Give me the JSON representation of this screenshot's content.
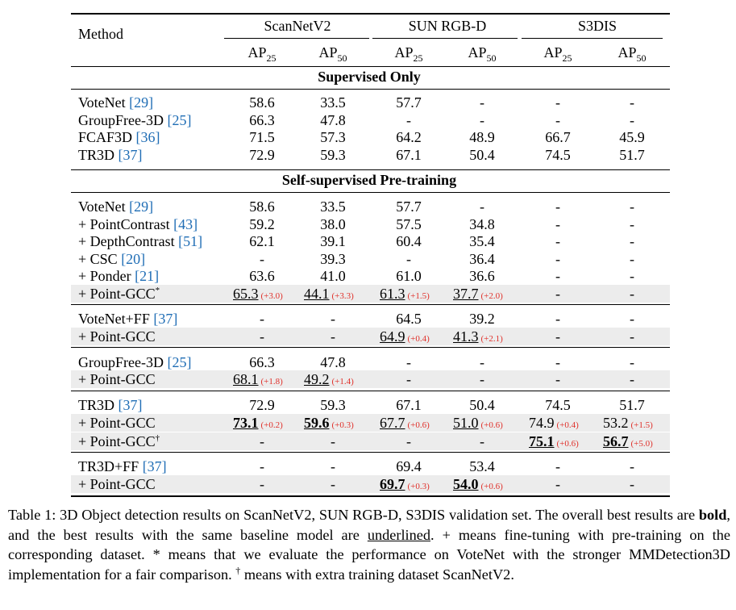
{
  "header": {
    "method": "Method",
    "datasets": [
      "ScanNetV2",
      "SUN RGB-D",
      "S3DIS"
    ],
    "metric_base": "AP",
    "metric_subs": [
      "25",
      "50",
      "25",
      "50",
      "25",
      "50"
    ]
  },
  "sections": [
    {
      "title": "Supervised Only"
    },
    {
      "title": "Self-supervised Pre-training"
    }
  ],
  "rows": [
    {
      "pre": "VoteNet ",
      "ref": "[29]",
      "cells": [
        {
          "v": "58.6"
        },
        {
          "v": "33.5"
        },
        {
          "v": "57.7"
        },
        {
          "v": "-"
        },
        {
          "v": "-"
        },
        {
          "v": "-"
        }
      ]
    },
    {
      "pre": "GroupFree-3D ",
      "ref": "[25]",
      "cells": [
        {
          "v": "66.3"
        },
        {
          "v": "47.8"
        },
        {
          "v": "-"
        },
        {
          "v": "-"
        },
        {
          "v": "-"
        },
        {
          "v": "-"
        }
      ]
    },
    {
      "pre": "FCAF3D ",
      "ref": "[36]",
      "cells": [
        {
          "v": "71.5"
        },
        {
          "v": "57.3"
        },
        {
          "v": "64.2"
        },
        {
          "v": "48.9"
        },
        {
          "v": "66.7"
        },
        {
          "v": "45.9"
        }
      ]
    },
    {
      "pre": "TR3D ",
      "ref": "[37]",
      "cells": [
        {
          "v": "72.9"
        },
        {
          "v": "59.3"
        },
        {
          "v": "67.1"
        },
        {
          "v": "50.4"
        },
        {
          "v": "74.5"
        },
        {
          "v": "51.7"
        }
      ]
    },
    {
      "pre": "VoteNet ",
      "ref": "[29]",
      "cells": [
        {
          "v": "58.6"
        },
        {
          "v": "33.5"
        },
        {
          "v": "57.7"
        },
        {
          "v": "-"
        },
        {
          "v": "-"
        },
        {
          "v": "-"
        }
      ]
    },
    {
      "pre": "+ PointContrast ",
      "ref": "[43]",
      "cells": [
        {
          "v": "59.2"
        },
        {
          "v": "38.0"
        },
        {
          "v": "57.5"
        },
        {
          "v": "34.8"
        },
        {
          "v": "-"
        },
        {
          "v": "-"
        }
      ]
    },
    {
      "pre": "+ DepthContrast ",
      "ref": "[51]",
      "cells": [
        {
          "v": "62.1"
        },
        {
          "v": "39.1"
        },
        {
          "v": "60.4"
        },
        {
          "v": "35.4"
        },
        {
          "v": "-"
        },
        {
          "v": "-"
        }
      ]
    },
    {
      "pre": "+ CSC ",
      "ref": "[20]",
      "cells": [
        {
          "v": "-"
        },
        {
          "v": "39.3"
        },
        {
          "v": "-"
        },
        {
          "v": "36.4"
        },
        {
          "v": "-"
        },
        {
          "v": "-"
        }
      ]
    },
    {
      "pre": "+ Ponder ",
      "ref": "[21]",
      "cells": [
        {
          "v": "63.6"
        },
        {
          "v": "41.0"
        },
        {
          "v": "61.0"
        },
        {
          "v": "36.6"
        },
        {
          "v": "-"
        },
        {
          "v": "-"
        }
      ]
    },
    {
      "pre": "+ Point-GCC",
      "ref": "",
      "mark": "*",
      "shaded": true,
      "cells": [
        {
          "v": "65.3",
          "u": true,
          "imp": "(+3.0)"
        },
        {
          "v": "44.1",
          "u": true,
          "imp": "(+3.3)"
        },
        {
          "v": "61.3",
          "u": true,
          "imp": "(+1.5)"
        },
        {
          "v": "37.7",
          "u": true,
          "imp": "(+2.0)"
        },
        {
          "v": "-"
        },
        {
          "v": "-"
        }
      ]
    },
    {
      "pre": "VoteNet+FF ",
      "ref": "[37]",
      "cells": [
        {
          "v": "-"
        },
        {
          "v": "-"
        },
        {
          "v": "64.5"
        },
        {
          "v": "39.2"
        },
        {
          "v": "-"
        },
        {
          "v": "-"
        }
      ]
    },
    {
      "pre": "+ Point-GCC",
      "ref": "",
      "shaded": true,
      "cells": [
        {
          "v": "-"
        },
        {
          "v": "-"
        },
        {
          "v": "64.9",
          "u": true,
          "imp": "(+0.4)"
        },
        {
          "v": "41.3",
          "u": true,
          "imp": "(+2.1)"
        },
        {
          "v": "-"
        },
        {
          "v": "-"
        }
      ]
    },
    {
      "pre": "GroupFree-3D ",
      "ref": "[25]",
      "cells": [
        {
          "v": "66.3"
        },
        {
          "v": "47.8"
        },
        {
          "v": "-"
        },
        {
          "v": "-"
        },
        {
          "v": "-"
        },
        {
          "v": "-"
        }
      ]
    },
    {
      "pre": "+ Point-GCC",
      "ref": "",
      "shaded": true,
      "cells": [
        {
          "v": "68.1",
          "u": true,
          "imp": "(+1.8)"
        },
        {
          "v": "49.2",
          "u": true,
          "imp": "(+1.4)"
        },
        {
          "v": "-"
        },
        {
          "v": "-"
        },
        {
          "v": "-"
        },
        {
          "v": "-"
        }
      ]
    },
    {
      "pre": "TR3D ",
      "ref": "[37]",
      "cells": [
        {
          "v": "72.9"
        },
        {
          "v": "59.3"
        },
        {
          "v": "67.1"
        },
        {
          "v": "50.4"
        },
        {
          "v": "74.5"
        },
        {
          "v": "51.7"
        }
      ]
    },
    {
      "pre": "+ Point-GCC",
      "ref": "",
      "shaded": true,
      "cells": [
        {
          "v": "73.1",
          "u": true,
          "b": true,
          "imp": "(+0.2)"
        },
        {
          "v": "59.6",
          "u": true,
          "b": true,
          "imp": "(+0.3)"
        },
        {
          "v": "67.7",
          "u": true,
          "imp": "(+0.6)"
        },
        {
          "v": "51.0",
          "u": true,
          "imp": "(+0.6)"
        },
        {
          "v": "74.9",
          "imp": "(+0.4)"
        },
        {
          "v": "53.2",
          "imp": "(+1.5)"
        }
      ]
    },
    {
      "pre": "+ Point-GCC",
      "ref": "",
      "mark": "†",
      "shaded": true,
      "cells": [
        {
          "v": "-"
        },
        {
          "v": "-"
        },
        {
          "v": "-"
        },
        {
          "v": "-"
        },
        {
          "v": "75.1",
          "u": true,
          "b": true,
          "imp": "(+0.6)"
        },
        {
          "v": "56.7",
          "u": true,
          "b": true,
          "imp": "(+5.0)"
        }
      ]
    },
    {
      "pre": "TR3D+FF ",
      "ref": "[37]",
      "cells": [
        {
          "v": "-"
        },
        {
          "v": "-"
        },
        {
          "v": "69.4"
        },
        {
          "v": "53.4"
        },
        {
          "v": "-"
        },
        {
          "v": "-"
        }
      ]
    },
    {
      "pre": "+ Point-GCC",
      "ref": "",
      "shaded": true,
      "cells": [
        {
          "v": "-"
        },
        {
          "v": "-"
        },
        {
          "v": "69.7",
          "u": true,
          "b": true,
          "imp": "(+0.3)"
        },
        {
          "v": "54.0",
          "u": true,
          "b": true,
          "imp": "(+0.6)"
        },
        {
          "v": "-"
        },
        {
          "v": "-"
        }
      ]
    }
  ],
  "caption": {
    "part1": "Table 1: 3D Object detection results on ScanNetV2, SUN RGB-D, S3DIS validation set. The overall best results are ",
    "bold_word": "bold",
    "part2": ", and the best results with the same baseline model are ",
    "underlined_word": "underlined",
    "part3": ". + means fine-tuning with pre-training on the corresponding dataset. * means that we evaluate the performance on VoteNet with the stronger MMDetection3D implementation for a fair comparison. ",
    "dagger": "†",
    "part4": " means with extra training dataset ScanNetV2."
  },
  "colors": {
    "ref": "#1f6db5",
    "improvement": "#e0312b",
    "shade": "#ececec"
  }
}
